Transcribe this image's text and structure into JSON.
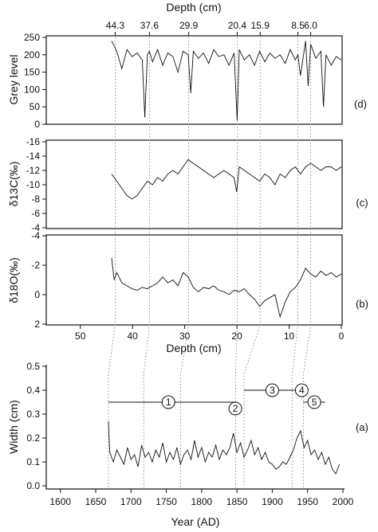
{
  "chart_data": [
    {
      "panel": "(d)",
      "type": "line",
      "ylabel": "Grey level",
      "ylim": [
        0,
        250
      ],
      "yticks": [
        0,
        50,
        100,
        150,
        200,
        250
      ],
      "x_axis_label": "Depth (cm)",
      "x_axis_position": "top",
      "xlim": [
        45,
        0
      ],
      "top_tick_labels": [
        "44.3",
        "37.6",
        "29.9",
        "20.4",
        "15.9",
        "8.5",
        "6.0"
      ],
      "top_tick_depths": [
        44.3,
        37.6,
        29.9,
        20.4,
        15.9,
        8.5,
        6.0
      ],
      "series": [
        {
          "x": [
            45,
            44,
            43,
            42,
            41,
            40,
            39,
            38.5,
            38,
            37.6,
            37,
            36,
            35,
            34,
            33,
            32,
            31,
            30,
            29.5,
            29,
            28,
            27,
            26,
            25,
            24,
            23,
            22,
            21,
            20.4,
            20,
            19,
            18,
            17,
            16,
            15,
            14,
            13,
            12,
            11,
            10,
            9,
            8.5,
            8,
            7,
            6.5,
            6,
            5,
            4,
            3.5,
            3,
            2,
            1,
            0
          ],
          "y": [
            240,
            210,
            160,
            215,
            195,
            205,
            185,
            20,
            200,
            210,
            180,
            215,
            170,
            205,
            195,
            150,
            210,
            200,
            90,
            210,
            190,
            205,
            175,
            215,
            195,
            200,
            170,
            205,
            10,
            215,
            185,
            200,
            170,
            210,
            180,
            205,
            190,
            200,
            175,
            215,
            185,
            200,
            140,
            240,
            110,
            230,
            190,
            210,
            50,
            200,
            170,
            195,
            185
          ]
        }
      ]
    },
    {
      "panel": "(c)",
      "type": "line",
      "ylabel": "δ13C(‰)",
      "ylim": [
        -4,
        -16
      ],
      "yticks": [
        -4,
        -6,
        -8,
        -10,
        -12,
        -14,
        -16
      ],
      "xlim": [
        45,
        0
      ],
      "series": [
        {
          "x": [
            45,
            44,
            43,
            42,
            41,
            40,
            39,
            38,
            37,
            36,
            35,
            34,
            33,
            32,
            31,
            30,
            29,
            28,
            27,
            26,
            25,
            24,
            23,
            22,
            21,
            20.5,
            20,
            19,
            18,
            17,
            16,
            15,
            14,
            13,
            12,
            11,
            10,
            9,
            8,
            7,
            6,
            5,
            4,
            3,
            2,
            1,
            0
          ],
          "y": [
            -11.5,
            -10.5,
            -9.5,
            -8.5,
            -8.0,
            -8.5,
            -9.5,
            -10.5,
            -10.0,
            -11.0,
            -10.5,
            -11.5,
            -12.0,
            -11.5,
            -12.5,
            -13.5,
            -13.0,
            -12.5,
            -12.0,
            -11.5,
            -11.0,
            -11.5,
            -12.0,
            -11.5,
            -11.0,
            -9.0,
            -12.5,
            -12.0,
            -11.5,
            -11.0,
            -10.5,
            -11.5,
            -11.0,
            -10.0,
            -11.5,
            -11.0,
            -12.0,
            -12.5,
            -11.5,
            -12.5,
            -13.0,
            -12.5,
            -12.0,
            -12.5,
            -12.5,
            -12.0,
            -12.5
          ]
        }
      ]
    },
    {
      "panel": "(b)",
      "type": "line",
      "ylabel": "δ18O(‰)",
      "ylim": [
        2,
        -4
      ],
      "yticks": [
        2,
        0,
        -2,
        -4
      ],
      "x_axis_label": "Depth (cm)",
      "xlim": [
        55,
        0
      ],
      "xticks": [
        50,
        40,
        30,
        20,
        10,
        0
      ],
      "series": [
        {
          "x": [
            45,
            44.5,
            44,
            43,
            42,
            41,
            40,
            39,
            38,
            37,
            36,
            35,
            34,
            33,
            32,
            31,
            30,
            29,
            28,
            27,
            26,
            25,
            24,
            23,
            22,
            21,
            20,
            19,
            18,
            17,
            16,
            15,
            14,
            13,
            12,
            11,
            10,
            9,
            8,
            7,
            6,
            5,
            4,
            3,
            2,
            1,
            0
          ],
          "y": [
            -2.5,
            -1.0,
            -1.5,
            -0.8,
            -0.6,
            -0.4,
            -0.3,
            -0.5,
            -0.4,
            -0.6,
            -0.8,
            -1.2,
            -0.8,
            -1.0,
            -0.6,
            -1.5,
            -1.2,
            -0.5,
            -0.2,
            -0.5,
            -0.4,
            -0.6,
            -0.3,
            -0.2,
            0.0,
            -0.3,
            -0.2,
            -0.4,
            0.0,
            0.3,
            0.8,
            0.4,
            0.2,
            0.0,
            1.5,
            0.5,
            -0.2,
            -0.5,
            -1.0,
            -1.8,
            -1.4,
            -1.2,
            -1.6,
            -1.3,
            -1.5,
            -1.2,
            -1.4
          ]
        }
      ]
    },
    {
      "panel": "(a)",
      "type": "line",
      "ylabel": "Width (cm)",
      "xlabel": "Year (AD)",
      "xlim": [
        1580,
        2000
      ],
      "ylim": [
        0,
        0.5
      ],
      "xticks": [
        1600,
        1650,
        1700,
        1750,
        1800,
        1850,
        1900,
        1950,
        2000
      ],
      "yticks": [
        0,
        0.1,
        0.2,
        0.3,
        0.4,
        0.5
      ],
      "series": [
        {
          "x": [
            1668,
            1670,
            1675,
            1680,
            1685,
            1690,
            1695,
            1700,
            1705,
            1710,
            1715,
            1720,
            1725,
            1730,
            1735,
            1740,
            1745,
            1750,
            1755,
            1760,
            1765,
            1770,
            1775,
            1780,
            1785,
            1790,
            1795,
            1800,
            1805,
            1810,
            1815,
            1820,
            1825,
            1830,
            1835,
            1840,
            1845,
            1850,
            1855,
            1860,
            1865,
            1870,
            1875,
            1880,
            1885,
            1890,
            1895,
            1900,
            1905,
            1910,
            1915,
            1920,
            1925,
            1930,
            1935,
            1940,
            1945,
            1950,
            1955,
            1960,
            1965,
            1970,
            1975,
            1980,
            1985,
            1990,
            1995
          ],
          "y": [
            0.27,
            0.14,
            0.1,
            0.15,
            0.12,
            0.09,
            0.16,
            0.11,
            0.13,
            0.08,
            0.17,
            0.12,
            0.14,
            0.1,
            0.15,
            0.12,
            0.18,
            0.1,
            0.14,
            0.11,
            0.16,
            0.09,
            0.13,
            0.15,
            0.11,
            0.19,
            0.12,
            0.16,
            0.1,
            0.14,
            0.12,
            0.17,
            0.11,
            0.15,
            0.13,
            0.16,
            0.22,
            0.14,
            0.18,
            0.12,
            0.15,
            0.19,
            0.13,
            0.16,
            0.11,
            0.14,
            0.1,
            0.09,
            0.07,
            0.08,
            0.1,
            0.09,
            0.12,
            0.15,
            0.2,
            0.23,
            0.16,
            0.19,
            0.13,
            0.15,
            0.11,
            0.14,
            0.09,
            0.12,
            0.07,
            0.05,
            0.09
          ]
        }
      ],
      "annotations": [
        {
          "label": "1",
          "year_start": 1668,
          "year_end": 1838,
          "y": 0.35
        },
        {
          "label": "2",
          "year_start": 1838,
          "year_end": 1850,
          "y": 0.35
        },
        {
          "label": "3",
          "year_start": 1860,
          "year_end": 1940,
          "y": 0.4
        },
        {
          "label": "4",
          "year_start": 1940,
          "year_end": 1944,
          "y": 0.4
        },
        {
          "label": "5",
          "year_start": 1944,
          "year_end": 1975,
          "y": 0.35
        }
      ]
    }
  ],
  "tie_lines": [
    {
      "depth": 44.3,
      "year": 1668
    },
    {
      "depth": 37.6,
      "year": 1718
    },
    {
      "depth": 29.9,
      "year": 1770
    },
    {
      "depth": 20.4,
      "year": 1848
    },
    {
      "depth": 15.9,
      "year": 1860
    },
    {
      "depth": 8.5,
      "year": 1928
    },
    {
      "depth": 6.0,
      "year": 1944
    }
  ]
}
